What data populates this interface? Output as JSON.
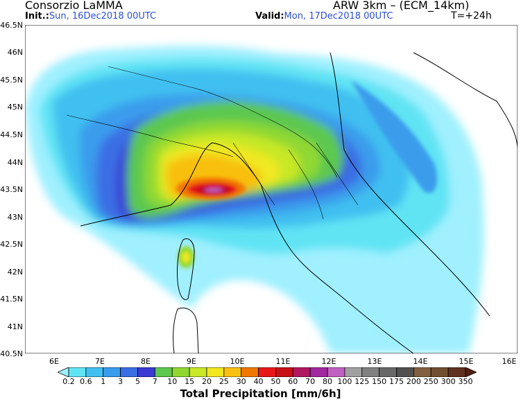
{
  "header": {
    "org": "Consorzio LaMMA",
    "model": "ARW 3km – (ECM_14km)",
    "init_label": "Init.:",
    "init_value": "Sun, 16Dec2018  00UTC",
    "valid_label": "Valid:",
    "valid_value": "Mon, 17Dec2018  00UTC",
    "lead_time": "T=+24h"
  },
  "axes": {
    "lat_labels": [
      "46.5N",
      "46N",
      "45.5N",
      "45N",
      "44.5N",
      "44N",
      "43.5N",
      "43N",
      "42.5N",
      "42N",
      "41.5N",
      "41N",
      "40.5N"
    ],
    "lon_labels": [
      "6E",
      "7E",
      "8E",
      "9E",
      "10E",
      "11E",
      "12E",
      "13E",
      "14E",
      "15E",
      "16E"
    ]
  },
  "colorbar": {
    "title": "Total Precipitation [mm/6h]",
    "levels": [
      "0.2",
      "0.6",
      "1",
      "3",
      "5",
      "7",
      "10",
      "15",
      "20",
      "25",
      "30",
      "40",
      "50",
      "60",
      "70",
      "80",
      "100",
      "125",
      "150",
      "175",
      "200",
      "250",
      "300",
      "350"
    ],
    "colors": [
      "#a0f0ff",
      "#60e4f4",
      "#40c0f0",
      "#3a9cec",
      "#3a6ee4",
      "#3a3ad4",
      "#5cc850",
      "#90d830",
      "#c8e828",
      "#f0e820",
      "#f8c010",
      "#f07800",
      "#e81818",
      "#c81018",
      "#b01860",
      "#a028a0",
      "#c060c0",
      "#a0a0a0",
      "#808080",
      "#686868",
      "#505050",
      "#806040",
      "#705030",
      "#603020",
      "#502010"
    ]
  }
}
